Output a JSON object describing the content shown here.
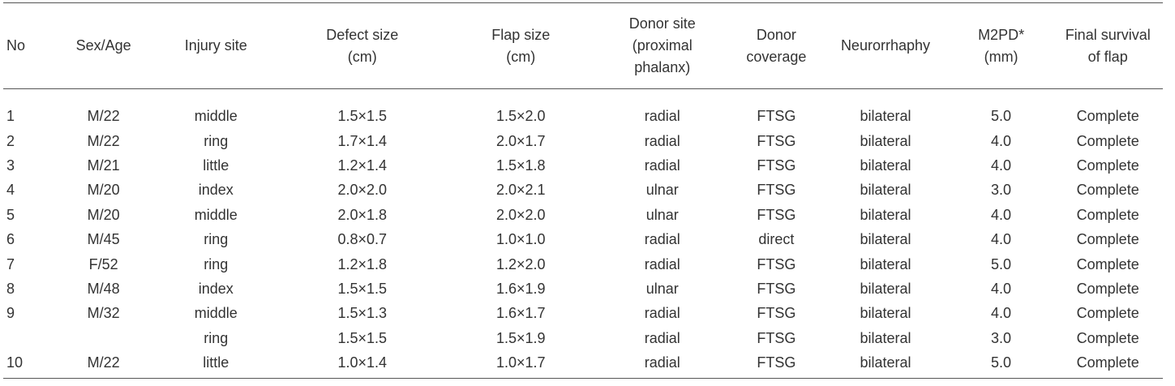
{
  "table": {
    "headers": [
      {
        "key": "no",
        "lines": [
          "No"
        ]
      },
      {
        "key": "sex",
        "lines": [
          "Sex/Age"
        ]
      },
      {
        "key": "injury",
        "lines": [
          "Injury site"
        ]
      },
      {
        "key": "defect",
        "lines": [
          "Defect size",
          "(cm)"
        ]
      },
      {
        "key": "flap",
        "lines": [
          "Flap size",
          "(cm)"
        ]
      },
      {
        "key": "donor",
        "lines": [
          "Donor site",
          "(proximal",
          "phalanx)"
        ]
      },
      {
        "key": "cover",
        "lines": [
          "Donor",
          "coverage"
        ]
      },
      {
        "key": "neuro",
        "lines": [
          "Neurorrhaphy"
        ]
      },
      {
        "key": "m2pd",
        "lines": [
          "M2PD*",
          "(mm)"
        ]
      },
      {
        "key": "final",
        "lines": [
          "Final survival",
          "of flap"
        ]
      }
    ],
    "rows": [
      [
        "1",
        "M/22",
        "middle",
        "1.5×1.5",
        "1.5×2.0",
        "radial",
        "FTSG",
        "bilateral",
        "5.0",
        "Complete"
      ],
      [
        "2",
        "M/22",
        "ring",
        "1.7×1.4",
        "2.0×1.7",
        "radial",
        "FTSG",
        "bilateral",
        "4.0",
        "Complete"
      ],
      [
        "3",
        "M/21",
        "little",
        "1.2×1.4",
        "1.5×1.8",
        "radial",
        "FTSG",
        "bilateral",
        "4.0",
        "Complete"
      ],
      [
        "4",
        "M/20",
        "index",
        "2.0×2.0",
        "2.0×2.1",
        "ulnar",
        "FTSG",
        "bilateral",
        "3.0",
        "Complete"
      ],
      [
        "5",
        "M/20",
        "middle",
        "2.0×1.8",
        "2.0×2.0",
        "ulnar",
        "FTSG",
        "bilateral",
        "4.0",
        "Complete"
      ],
      [
        "6",
        "M/45",
        "ring",
        "0.8×0.7",
        "1.0×1.0",
        "radial",
        "direct",
        "bilateral",
        "4.0",
        "Complete"
      ],
      [
        "7",
        "F/52",
        "ring",
        "1.2×1.8",
        "1.2×2.0",
        "radial",
        "FTSG",
        "bilateral",
        "5.0",
        "Complete"
      ],
      [
        "8",
        "M/48",
        "index",
        "1.5×1.5",
        "1.6×1.9",
        "ulnar",
        "FTSG",
        "bilateral",
        "4.0",
        "Complete"
      ],
      [
        "9",
        "M/32",
        "middle",
        "1.5×1.3",
        "1.6×1.7",
        "radial",
        "FTSG",
        "bilateral",
        "4.0",
        "Complete"
      ],
      [
        "",
        "",
        "ring",
        "1.5×1.5",
        "1.5×1.9",
        "radial",
        "FTSG",
        "bilateral",
        "3.0",
        "Complete"
      ],
      [
        "10",
        "M/22",
        "little",
        "1.0×1.4",
        "1.0×1.7",
        "radial",
        "FTSG",
        "bilateral",
        "5.0",
        "Complete"
      ]
    ]
  }
}
